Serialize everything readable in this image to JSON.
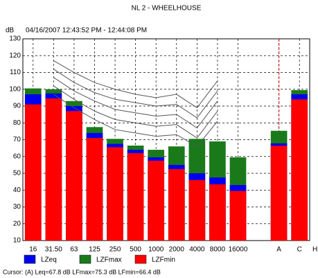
{
  "chart_data": {
    "type": "bar",
    "title": "NL 2 - WHEELHOUSE",
    "subtitle": "04/16/2007 12:43:52 PM - 12:44:08 PM",
    "y_label": "dB",
    "x_label": "Hz",
    "footer": "Cursor: (A) Leq=67.8 dB LFmax=75.3 dB LFmin=66.4 dB",
    "categories": [
      "16",
      "31.50",
      "63",
      "125",
      "250",
      "500",
      "1000",
      "2000",
      "4000",
      "8000",
      "16000",
      null,
      "A",
      "C"
    ],
    "series": [
      {
        "name": "LZeq",
        "color": "#0000ee",
        "values": [
          97,
          97.5,
          90,
          74,
          67.5,
          64,
          59.5,
          55,
          50,
          47.5,
          43,
          null,
          67.8,
          97
        ]
      },
      {
        "name": "LZFmax",
        "color": "#1a7a1a",
        "values": [
          100.5,
          100,
          93,
          77.5,
          70.5,
          66.5,
          64,
          66,
          70.5,
          69,
          59.5,
          null,
          75.3,
          99.5
        ]
      },
      {
        "name": "LZFmin",
        "color": "#ff0000",
        "values": [
          91,
          94.5,
          87,
          71,
          65.5,
          62,
          57.5,
          52.5,
          46,
          43.5,
          39.5,
          null,
          66.4,
          94
        ]
      }
    ],
    "curves": [
      {
        "color": "#555555",
        "values": [
          null,
          117,
          110,
          104,
          100,
          97,
          95,
          97,
          89,
          105,
          null,
          null,
          null,
          null
        ]
      },
      {
        "color": "#555555",
        "values": [
          null,
          112,
          104,
          98,
          94,
          92,
          90,
          91,
          83,
          99,
          null,
          null,
          null,
          null
        ]
      },
      {
        "color": "#555555",
        "values": [
          null,
          107,
          99,
          93,
          88,
          86,
          84,
          85,
          77,
          93,
          null,
          null,
          null,
          null
        ]
      },
      {
        "color": "#555555",
        "values": [
          null,
          102,
          94,
          87,
          82,
          80,
          78,
          79,
          71,
          87,
          null,
          null,
          null,
          null
        ]
      },
      {
        "color": "#555555",
        "values": [
          null,
          97,
          89,
          82,
          76,
          74,
          72,
          73,
          66,
          81,
          null,
          null,
          null,
          null
        ]
      }
    ],
    "ylim": [
      10,
      130
    ],
    "yticks": [
      10,
      20,
      30,
      40,
      50,
      60,
      70,
      80,
      90,
      100,
      110,
      120,
      130
    ],
    "grid": true,
    "legend": "bottom"
  }
}
